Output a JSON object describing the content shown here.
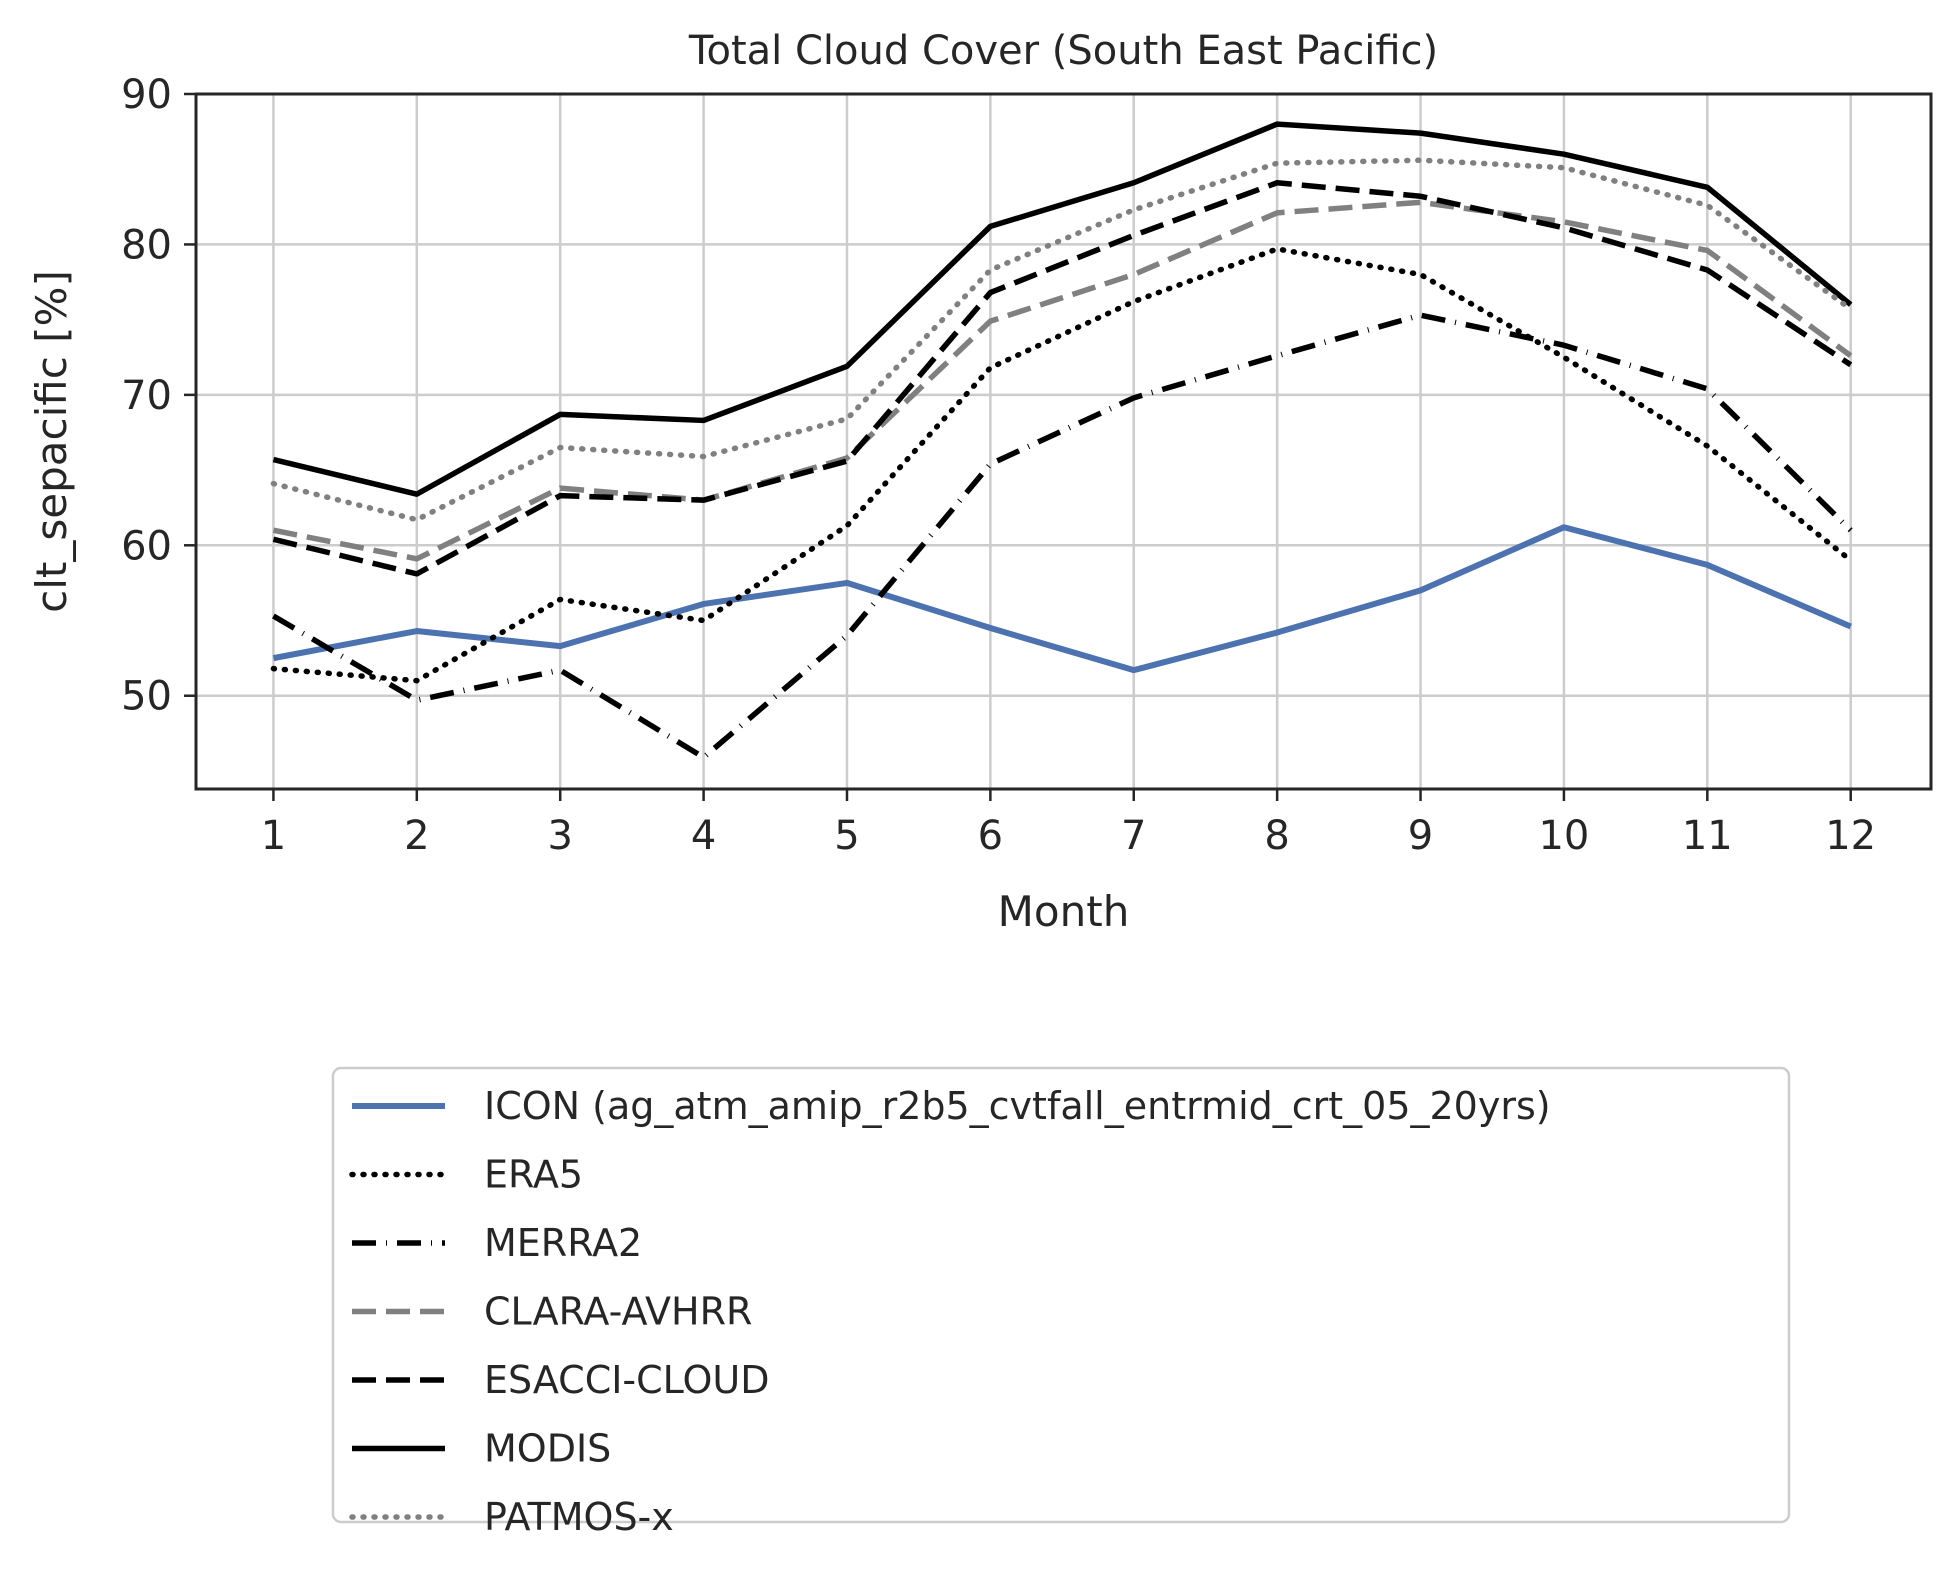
{
  "chart_data": {
    "type": "line",
    "title": "Total Cloud Cover (South East Pacific)",
    "xlabel": "Month",
    "ylabel": "clt_sepacific [%]",
    "x": [
      1,
      2,
      3,
      4,
      5,
      6,
      7,
      8,
      9,
      10,
      11,
      12
    ],
    "xticks": [
      "1",
      "2",
      "3",
      "4",
      "5",
      "6",
      "7",
      "8",
      "9",
      "10",
      "11",
      "12"
    ],
    "xlim": [
      0.46,
      12.56
    ],
    "ylim": [
      43.8,
      90
    ],
    "yticks": [
      50,
      60,
      70,
      80,
      90
    ],
    "grid": true,
    "legend_position": "below plot",
    "series": [
      {
        "name": "ICON (ag_atm_amip_r2b5_cvtfall_entrmid_crt_05_20yrs)",
        "color": "#4c72b0",
        "style": "solid",
        "values": [
          52.5,
          54.3,
          53.3,
          56.1,
          57.5,
          54.5,
          51.7,
          54.2,
          57.0,
          61.2,
          58.7,
          54.6
        ]
      },
      {
        "name": "ERA5",
        "color": "#000000",
        "style": "dotted",
        "values": [
          51.8,
          51.0,
          56.4,
          55.0,
          61.3,
          71.8,
          76.2,
          79.7,
          78.0,
          72.5,
          66.6,
          59.0
        ]
      },
      {
        "name": "MERRA2",
        "color": "#000000",
        "style": "dashdot",
        "values": [
          55.3,
          49.7,
          51.7,
          45.9,
          54.0,
          65.4,
          69.8,
          72.6,
          75.3,
          73.3,
          70.4,
          61.0
        ]
      },
      {
        "name": "CLARA-AVHRR",
        "color": "#808080",
        "style": "dashed",
        "values": [
          61.0,
          59.1,
          63.8,
          63.0,
          65.8,
          74.9,
          78.0,
          82.1,
          82.8,
          81.5,
          79.6,
          72.6
        ]
      },
      {
        "name": "ESACCI-CLOUD",
        "color": "#000000",
        "style": "dashed",
        "values": [
          60.4,
          58.1,
          63.3,
          63.0,
          65.6,
          76.8,
          80.6,
          84.1,
          83.2,
          81.1,
          78.3,
          72.0
        ]
      },
      {
        "name": "MODIS",
        "color": "#000000",
        "style": "solid",
        "values": [
          65.7,
          63.4,
          68.7,
          68.3,
          71.9,
          81.2,
          84.1,
          88.0,
          87.4,
          86.0,
          83.8,
          76.0
        ]
      },
      {
        "name": "PATMOS-x",
        "color": "#808080",
        "style": "dotted",
        "values": [
          64.1,
          61.7,
          66.5,
          65.9,
          68.4,
          78.3,
          82.3,
          85.4,
          85.6,
          85.1,
          82.6,
          75.7
        ]
      }
    ]
  }
}
